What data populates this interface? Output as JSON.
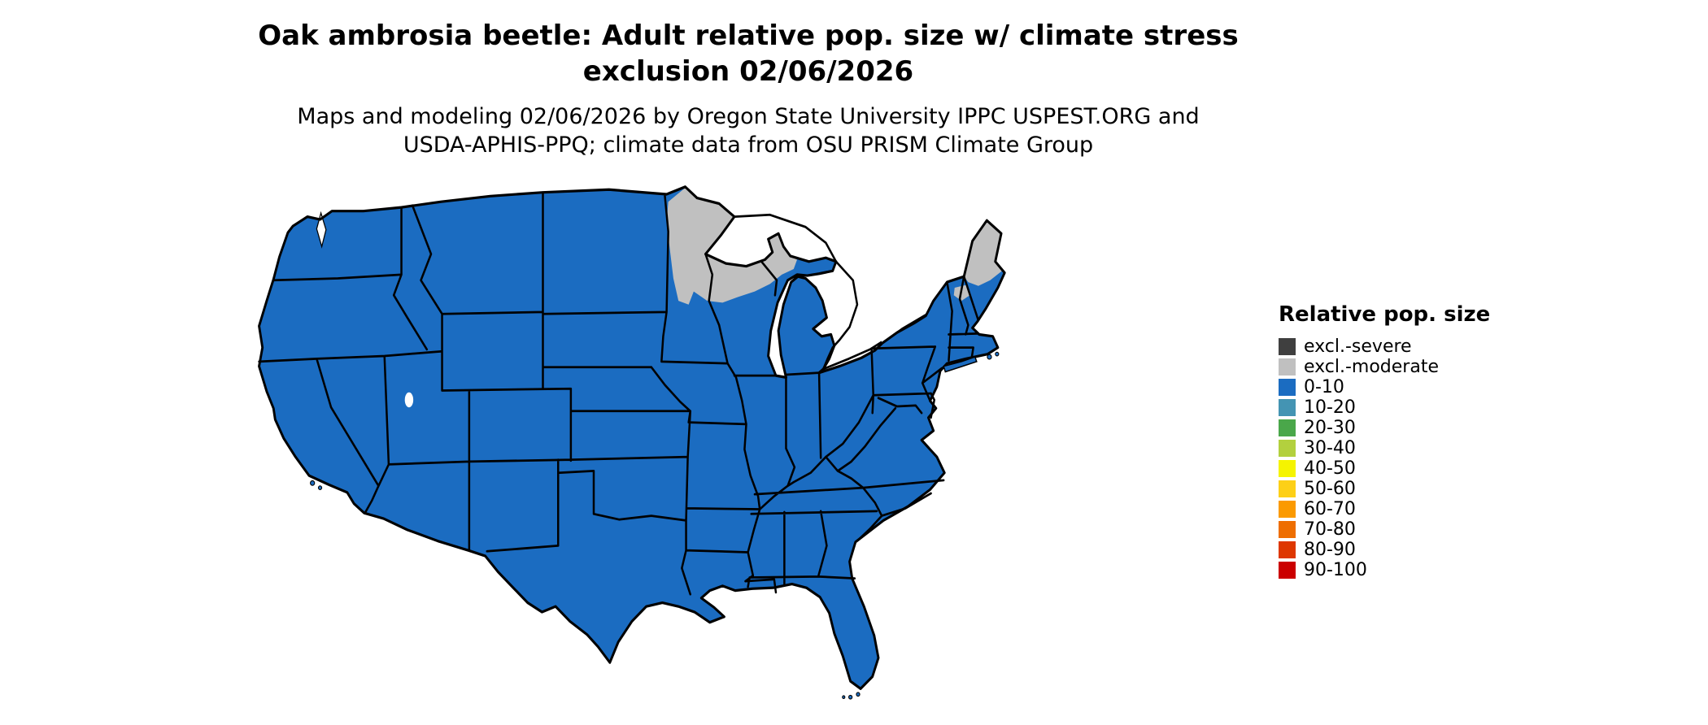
{
  "title": {
    "line1": "Oak ambrosia beetle: Adult relative pop. size w/ climate stress",
    "line2": "exclusion 02/06/2026"
  },
  "subtitle": {
    "line1": "Maps and modeling 02/06/2026 by Oregon State University IPPC USPEST.ORG and",
    "line2": "USDA-APHIS-PPQ; climate data from OSU PRISM Climate Group"
  },
  "legend": {
    "title": "Relative pop. size",
    "items": [
      {
        "label": "excl.-severe",
        "color": "#3f3f3f"
      },
      {
        "label": "excl.-moderate",
        "color": "#c0c0c0"
      },
      {
        "label": "0-10",
        "color": "#1b6cc1"
      },
      {
        "label": "10-20",
        "color": "#4494b3"
      },
      {
        "label": "20-30",
        "color": "#4aa74a"
      },
      {
        "label": "30-40",
        "color": "#b3d03e"
      },
      {
        "label": "40-50",
        "color": "#f5f400"
      },
      {
        "label": "50-60",
        "color": "#fdd017"
      },
      {
        "label": "60-70",
        "color": "#fb9a00"
      },
      {
        "label": "70-80",
        "color": "#ee6e00"
      },
      {
        "label": "80-90",
        "color": "#de3700"
      },
      {
        "label": "90-100",
        "color": "#cb0000"
      }
    ]
  },
  "map": {
    "land_color": "#1b6cc1",
    "exclusion_moderate_color": "#c0c0c0",
    "exclusion_severe_color": "#3f3f3f",
    "water_color": "#ffffff",
    "border_color": "#000000"
  }
}
